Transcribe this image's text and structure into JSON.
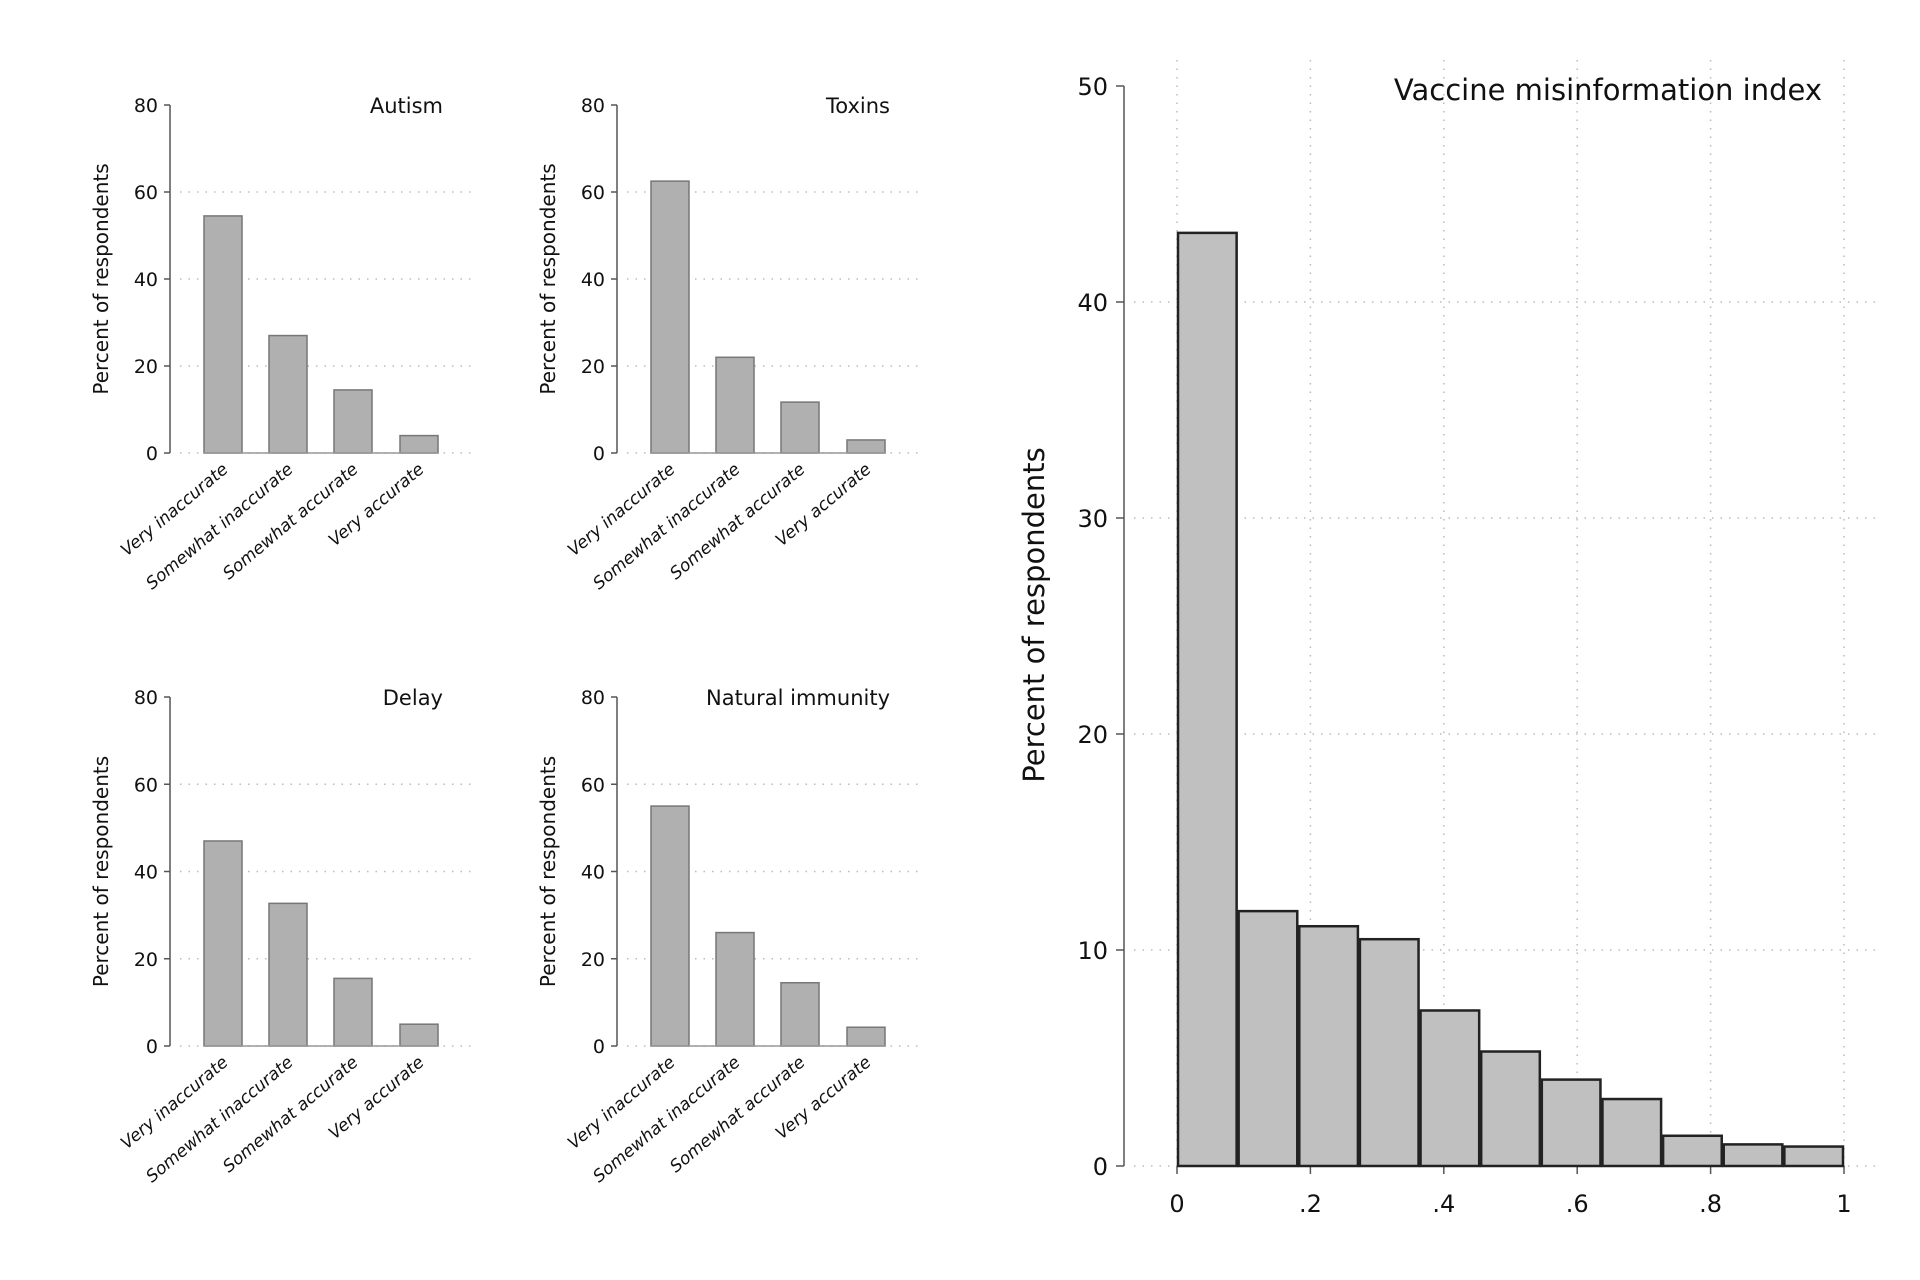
{
  "chart_data": [
    {
      "type": "bar",
      "title": "Autism",
      "ylabel": "Percent of respondents",
      "categories": [
        "Very inaccurate",
        "Somewhat inaccurate",
        "Somewhat accurate",
        "Very accurate"
      ],
      "values": [
        54.5,
        27,
        14.5,
        4
      ],
      "ylim": [
        0,
        80
      ],
      "yticks": [
        0,
        20,
        40,
        60,
        80
      ],
      "grid": true,
      "bar_color": "#b0b0b0"
    },
    {
      "type": "bar",
      "title": "Toxins",
      "ylabel": "Percent of respondents",
      "categories": [
        "Very inaccurate",
        "Somewhat inaccurate",
        "Somewhat accurate",
        "Very accurate"
      ],
      "values": [
        62.5,
        22,
        11.7,
        3
      ],
      "ylim": [
        0,
        80
      ],
      "yticks": [
        0,
        20,
        40,
        60,
        80
      ],
      "grid": true,
      "bar_color": "#b0b0b0"
    },
    {
      "type": "bar",
      "title": "Delay",
      "ylabel": "Percent of respondents",
      "categories": [
        "Very inaccurate",
        "Somewhat inaccurate",
        "Somewhat accurate",
        "Very accurate"
      ],
      "values": [
        47,
        32.7,
        15.5,
        5
      ],
      "ylim": [
        0,
        80
      ],
      "yticks": [
        0,
        20,
        40,
        60,
        80
      ],
      "grid": true,
      "bar_color": "#b0b0b0"
    },
    {
      "type": "bar",
      "title": "Natural immunity",
      "ylabel": "Percent of respondents",
      "categories": [
        "Very inaccurate",
        "Somewhat inaccurate",
        "Somewhat accurate",
        "Very accurate"
      ],
      "values": [
        55,
        26,
        14.5,
        4.3
      ],
      "ylim": [
        0,
        80
      ],
      "yticks": [
        0,
        20,
        40,
        60,
        80
      ],
      "grid": true,
      "bar_color": "#b0b0b0"
    },
    {
      "type": "histogram",
      "title": "Vaccine misinformation index",
      "ylabel": "Percent of respondents",
      "bin_range": [
        0,
        1
      ],
      "values": [
        43.2,
        11.8,
        11.1,
        10.5,
        7.2,
        5.3,
        4.0,
        3.1,
        1.4,
        1.0,
        0.9
      ],
      "xlim": [
        0,
        1
      ],
      "ylim": [
        0,
        50
      ],
      "xticks": [
        "0",
        ".2",
        ".4",
        ".6",
        ".8",
        "1"
      ],
      "yticks": [
        0,
        10,
        20,
        30,
        40,
        50
      ],
      "grid": true,
      "bar_color": "#c0c0c0",
      "edge_color": "#222222"
    }
  ]
}
